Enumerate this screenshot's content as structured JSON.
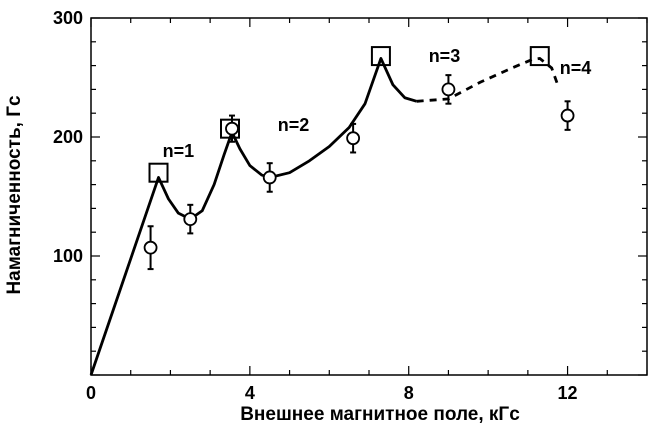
{
  "chart_data": {
    "type": "scatter",
    "xlabel": "Внешнее магнитное поле, кГс",
    "ylabel": "Намагниченность, Гс",
    "xlim": [
      0,
      14
    ],
    "ylim": [
      0,
      300
    ],
    "x_ticks": [
      {
        "value": 0,
        "label": "0"
      },
      {
        "value": 4,
        "label": "4"
      },
      {
        "value": 8,
        "label": "8"
      },
      {
        "value": 12,
        "label": "12"
      }
    ],
    "y_ticks": [
      {
        "value": 100,
        "label": "100"
      },
      {
        "value": 200,
        "label": "200"
      },
      {
        "value": 300,
        "label": "300"
      }
    ],
    "grid": false,
    "series": [
      {
        "marker": "circle-with-error-bars",
        "points": [
          {
            "x": 1.5,
            "y": 107,
            "err": 18
          },
          {
            "x": 2.5,
            "y": 131,
            "err": 12
          },
          {
            "x": 3.55,
            "y": 207,
            "err": 11
          },
          {
            "x": 4.5,
            "y": 166,
            "err": 12
          },
          {
            "x": 6.6,
            "y": 199,
            "err": 12
          },
          {
            "x": 9.0,
            "y": 240,
            "err": 12
          },
          {
            "x": 12.0,
            "y": 218,
            "err": 12
          }
        ]
      },
      {
        "marker": "square",
        "points": [
          {
            "x": 1.7,
            "y": 170
          },
          {
            "x": 3.5,
            "y": 207
          },
          {
            "x": 7.3,
            "y": 268
          },
          {
            "x": 11.3,
            "y": 268
          }
        ]
      },
      {
        "style": "solid-line",
        "points": [
          [
            0,
            0
          ],
          [
            1.7,
            166
          ],
          [
            1.95,
            148
          ],
          [
            2.2,
            136
          ],
          [
            2.5,
            131
          ],
          [
            2.8,
            138
          ],
          [
            3.1,
            160
          ],
          [
            3.35,
            185
          ],
          [
            3.55,
            204
          ],
          [
            3.75,
            190
          ],
          [
            4.0,
            176
          ],
          [
            4.3,
            168
          ],
          [
            4.5,
            166
          ],
          [
            5.0,
            170
          ],
          [
            5.5,
            180
          ],
          [
            6.0,
            192
          ],
          [
            6.5,
            208
          ],
          [
            6.9,
            228
          ],
          [
            7.3,
            266
          ],
          [
            7.6,
            244
          ],
          [
            7.9,
            233
          ],
          [
            8.2,
            230
          ]
        ]
      },
      {
        "style": "dashed-line",
        "points": [
          [
            8.2,
            230
          ],
          [
            9.0,
            232
          ],
          [
            9.8,
            246
          ],
          [
            10.6,
            258
          ],
          [
            11.1,
            265
          ],
          [
            11.3,
            266
          ],
          [
            11.6,
            258
          ],
          [
            11.75,
            244
          ]
        ]
      }
    ],
    "annotations": [
      {
        "text": "n=1",
        "x": 2.2,
        "y": 183
      },
      {
        "text": "n=2",
        "x": 5.1,
        "y": 205
      },
      {
        "text": "n=3",
        "x": 8.9,
        "y": 263
      },
      {
        "text": "n=4",
        "x": 12.2,
        "y": 253
      }
    ]
  }
}
